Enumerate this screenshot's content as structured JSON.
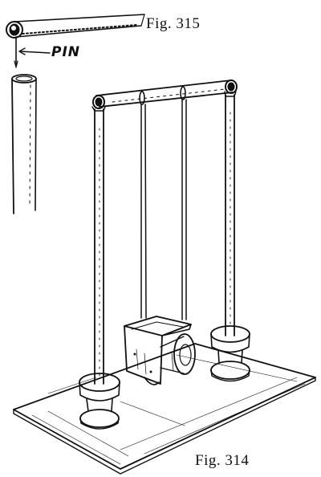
{
  "figures": {
    "fig315_caption": "Fig. 315",
    "fig314_caption": "Fig. 314",
    "pin_label": "PIN"
  }
}
